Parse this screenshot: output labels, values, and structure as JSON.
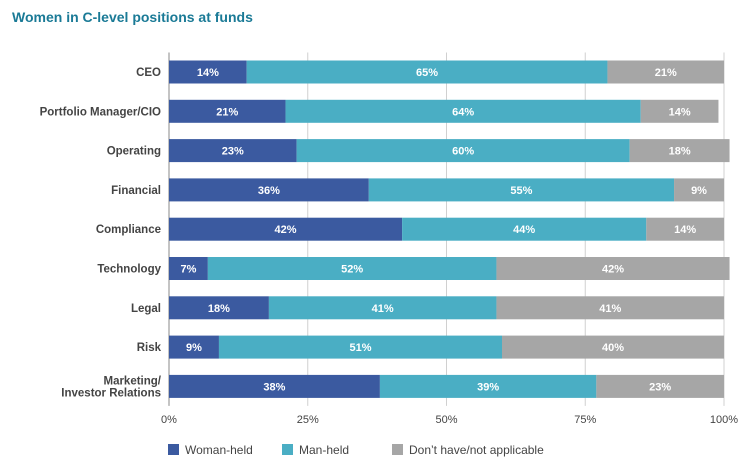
{
  "chart_data": {
    "type": "bar",
    "orientation": "horizontal",
    "stacked": true,
    "title": "Women in C-level positions at funds",
    "categories": [
      "CEO",
      "Portfolio Manager/CIO",
      "Operating",
      "Financial",
      "Compliance",
      "Technology",
      "Legal",
      "Risk",
      "Marketing/\nInvestor Relations"
    ],
    "series": [
      {
        "name": "Woman-held",
        "color": "#3b5aa0",
        "values": [
          14,
          21,
          23,
          36,
          42,
          7,
          18,
          9,
          38
        ]
      },
      {
        "name": "Man-held",
        "color": "#4aaec4",
        "values": [
          65,
          64,
          60,
          55,
          44,
          52,
          41,
          51,
          39
        ]
      },
      {
        "name": "Don’t have/not applicable",
        "color": "#a6a6a6",
        "values": [
          21,
          14,
          18,
          9,
          14,
          42,
          41,
          40,
          23
        ]
      }
    ],
    "value_suffix": "%",
    "xlim": [
      0,
      100
    ],
    "xticks": [
      0,
      25,
      50,
      75,
      100
    ],
    "xtick_labels": [
      "0%",
      "25%",
      "50%",
      "75%",
      "100%"
    ],
    "grid": true,
    "legend_position": "bottom"
  }
}
